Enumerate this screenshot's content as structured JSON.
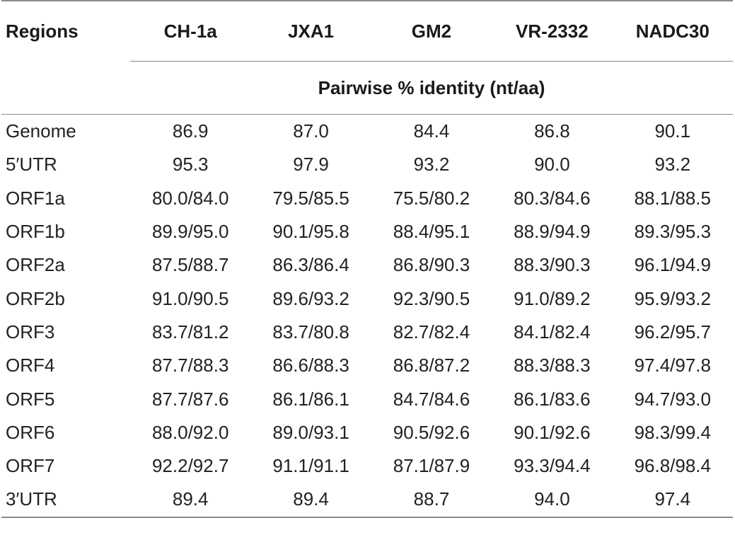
{
  "table": {
    "headers": [
      "Regions",
      "CH-1a",
      "JXA1",
      "GM2",
      "VR-2332",
      "NADC30"
    ],
    "subheader": "Pairwise % identity (nt/aa)",
    "rows": [
      [
        "Genome",
        "86.9",
        "87.0",
        "84.4",
        "86.8",
        "90.1"
      ],
      [
        "5′UTR",
        "95.3",
        "97.9",
        "93.2",
        "90.0",
        "93.2"
      ],
      [
        "ORF1a",
        "80.0/84.0",
        "79.5/85.5",
        "75.5/80.2",
        "80.3/84.6",
        "88.1/88.5"
      ],
      [
        "ORF1b",
        "89.9/95.0",
        "90.1/95.8",
        "88.4/95.1",
        "88.9/94.9",
        "89.3/95.3"
      ],
      [
        "ORF2a",
        "87.5/88.7",
        "86.3/86.4",
        "86.8/90.3",
        "88.3/90.3",
        "96.1/94.9"
      ],
      [
        "ORF2b",
        "91.0/90.5",
        "89.6/93.2",
        "92.3/90.5",
        "91.0/89.2",
        "95.9/93.2"
      ],
      [
        "ORF3",
        "83.7/81.2",
        "83.7/80.8",
        "82.7/82.4",
        "84.1/82.4",
        "96.2/95.7"
      ],
      [
        "ORF4",
        "87.7/88.3",
        "86.6/88.3",
        "86.8/87.2",
        "88.3/88.3",
        "97.4/97.8"
      ],
      [
        "ORF5",
        "87.7/87.6",
        "86.1/86.1",
        "84.7/84.6",
        "86.1/83.6",
        "94.7/93.0"
      ],
      [
        "ORF6",
        "88.0/92.0",
        "89.0/93.1",
        "90.5/92.6",
        "90.1/92.6",
        "98.3/99.4"
      ],
      [
        "ORF7",
        "92.2/92.7",
        "91.1/91.1",
        "87.1/87.9",
        "93.3/94.4",
        "96.8/98.4"
      ],
      [
        "3′UTR",
        "89.4",
        "89.4",
        "88.7",
        "94.0",
        "97.4"
      ]
    ]
  }
}
